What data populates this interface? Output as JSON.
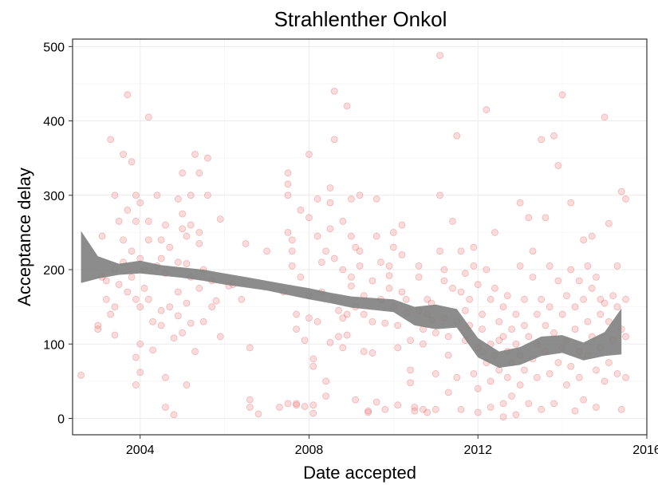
{
  "chart_data": {
    "type": "scatter",
    "title": "Strahlenther Onkol",
    "xlabel": "Date accepted",
    "ylabel": "Acceptance delay",
    "xlim": [
      2002.4,
      2016.0
    ],
    "ylim": [
      -22,
      510
    ],
    "x_ticks": [
      2004,
      2008,
      2012,
      2016
    ],
    "x_tick_labels": [
      "2004",
      "2008",
      "2012",
      "2016"
    ],
    "y_ticks": [
      0,
      100,
      200,
      300,
      400,
      500
    ],
    "y_tick_labels": [
      "0",
      "100",
      "200",
      "300",
      "400",
      "500"
    ],
    "grid": true,
    "point_color": "#f08080",
    "point_stroke": "#e34a4a",
    "smooth_color": "#808080",
    "smooth_band": {
      "x": [
        2002.6,
        2003.0,
        2003.5,
        2004.0,
        2004.5,
        2005.0,
        2005.5,
        2006.0,
        2006.5,
        2007.0,
        2007.5,
        2008.0,
        2008.5,
        2009.0,
        2009.5,
        2010.0,
        2010.5,
        2011.0,
        2011.5,
        2012.0,
        2012.5,
        2013.0,
        2013.5,
        2014.0,
        2014.5,
        2015.0,
        2015.4
      ],
      "lower": [
        182,
        188,
        193,
        195,
        192,
        189,
        185,
        180,
        176,
        172,
        166,
        160,
        155,
        149,
        146,
        143,
        125,
        120,
        122,
        82,
        68,
        72,
        84,
        88,
        78,
        84,
        86
      ],
      "upper": [
        252,
        218,
        208,
        212,
        206,
        203,
        200,
        195,
        190,
        185,
        180,
        175,
        169,
        164,
        162,
        160,
        150,
        153,
        147,
        108,
        90,
        96,
        110,
        112,
        102,
        116,
        148
      ]
    },
    "points": [
      [
        2002.6,
        58
      ],
      [
        2003.0,
        125
      ],
      [
        2003.0,
        120
      ],
      [
        2003.1,
        245
      ],
      [
        2003.1,
        190
      ],
      [
        2003.2,
        185
      ],
      [
        2003.2,
        160
      ],
      [
        2003.3,
        375
      ],
      [
        2003.3,
        140
      ],
      [
        2003.4,
        200
      ],
      [
        2003.4,
        300
      ],
      [
        2003.4,
        150
      ],
      [
        2003.4,
        112
      ],
      [
        2003.5,
        180
      ],
      [
        2003.5,
        265
      ],
      [
        2003.6,
        355
      ],
      [
        2003.6,
        240
      ],
      [
        2003.6,
        210
      ],
      [
        2003.7,
        435
      ],
      [
        2003.7,
        280
      ],
      [
        2003.7,
        170
      ],
      [
        2003.8,
        345
      ],
      [
        2003.8,
        225
      ],
      [
        2003.8,
        190
      ],
      [
        2003.9,
        300
      ],
      [
        2003.9,
        265
      ],
      [
        2003.9,
        160
      ],
      [
        2003.9,
        82
      ],
      [
        2003.9,
        45
      ],
      [
        2004.0,
        62
      ],
      [
        2004.0,
        290
      ],
      [
        2004.0,
        215
      ],
      [
        2004.0,
        150
      ],
      [
        2004.0,
        100
      ],
      [
        2004.1,
        200
      ],
      [
        2004.1,
        175
      ],
      [
        2004.2,
        405
      ],
      [
        2004.2,
        265
      ],
      [
        2004.2,
        240
      ],
      [
        2004.2,
        160
      ],
      [
        2004.3,
        130
      ],
      [
        2004.3,
        92
      ],
      [
        2004.4,
        300
      ],
      [
        2004.4,
        205
      ],
      [
        2004.5,
        240
      ],
      [
        2004.5,
        215
      ],
      [
        2004.5,
        145
      ],
      [
        2004.5,
        125
      ],
      [
        2004.6,
        260
      ],
      [
        2004.6,
        195
      ],
      [
        2004.6,
        15
      ],
      [
        2004.6,
        55
      ],
      [
        2004.7,
        230
      ],
      [
        2004.7,
        150
      ],
      [
        2004.8,
        108
      ],
      [
        2004.8,
        5
      ],
      [
        2004.9,
        295
      ],
      [
        2004.9,
        210
      ],
      [
        2004.9,
        170
      ],
      [
        2004.9,
        138
      ],
      [
        2005.0,
        330
      ],
      [
        2005.0,
        275
      ],
      [
        2005.0,
        255
      ],
      [
        2005.0,
        115
      ],
      [
        2005.1,
        245
      ],
      [
        2005.1,
        208
      ],
      [
        2005.1,
        155
      ],
      [
        2005.1,
        45
      ],
      [
        2005.2,
        300
      ],
      [
        2005.2,
        260
      ],
      [
        2005.2,
        190
      ],
      [
        2005.2,
        128
      ],
      [
        2005.3,
        90
      ],
      [
        2005.3,
        355
      ],
      [
        2005.4,
        330
      ],
      [
        2005.4,
        250
      ],
      [
        2005.4,
        235
      ],
      [
        2005.4,
        175
      ],
      [
        2005.5,
        200
      ],
      [
        2005.5,
        130
      ],
      [
        2005.6,
        300
      ],
      [
        2005.6,
        350
      ],
      [
        2005.7,
        185
      ],
      [
        2005.7,
        150
      ],
      [
        2005.8,
        158
      ],
      [
        2005.9,
        110
      ],
      [
        2005.9,
        268
      ],
      [
        2006.1,
        178
      ],
      [
        2006.2,
        180
      ],
      [
        2006.4,
        160
      ],
      [
        2006.5,
        235
      ],
      [
        2006.6,
        25
      ],
      [
        2006.6,
        95
      ],
      [
        2006.6,
        15
      ],
      [
        2006.8,
        6
      ],
      [
        2007.0,
        225
      ],
      [
        2007.3,
        15
      ],
      [
        2007.4,
        170
      ],
      [
        2007.5,
        20
      ],
      [
        2007.5,
        330
      ],
      [
        2007.5,
        315
      ],
      [
        2007.5,
        300
      ],
      [
        2007.5,
        250
      ],
      [
        2007.6,
        240
      ],
      [
        2007.6,
        225
      ],
      [
        2007.6,
        205
      ],
      [
        2007.7,
        140
      ],
      [
        2007.7,
        120
      ],
      [
        2007.7,
        20
      ],
      [
        2007.7,
        18
      ],
      [
        2007.8,
        280
      ],
      [
        2007.8,
        190
      ],
      [
        2007.9,
        105
      ],
      [
        2007.9,
        16
      ],
      [
        2008.0,
        355
      ],
      [
        2008.0,
        270
      ],
      [
        2008.0,
        165
      ],
      [
        2008.0,
        135
      ],
      [
        2008.1,
        80
      ],
      [
        2008.1,
        70
      ],
      [
        2008.1,
        7
      ],
      [
        2008.1,
        18
      ],
      [
        2008.2,
        295
      ],
      [
        2008.2,
        245
      ],
      [
        2008.2,
        130
      ],
      [
        2008.3,
        210
      ],
      [
        2008.3,
        170
      ],
      [
        2008.4,
        50
      ],
      [
        2008.4,
        30
      ],
      [
        2008.4,
        225
      ],
      [
        2008.5,
        310
      ],
      [
        2008.5,
        290
      ],
      [
        2008.5,
        255
      ],
      [
        2008.5,
        102
      ],
      [
        2008.6,
        440
      ],
      [
        2008.6,
        375
      ],
      [
        2008.6,
        215
      ],
      [
        2008.6,
        160
      ],
      [
        2008.7,
        145
      ],
      [
        2008.7,
        110
      ],
      [
        2008.8,
        265
      ],
      [
        2008.8,
        200
      ],
      [
        2008.8,
        135
      ],
      [
        2008.8,
        95
      ],
      [
        2008.9,
        420
      ],
      [
        2008.9,
        140
      ],
      [
        2008.9,
        112
      ],
      [
        2009.0,
        295
      ],
      [
        2009.0,
        245
      ],
      [
        2009.0,
        190
      ],
      [
        2009.0,
        178
      ],
      [
        2009.1,
        230
      ],
      [
        2009.1,
        150
      ],
      [
        2009.1,
        25
      ],
      [
        2009.2,
        300
      ],
      [
        2009.2,
        225
      ],
      [
        2009.2,
        205
      ],
      [
        2009.3,
        165
      ],
      [
        2009.3,
        140
      ],
      [
        2009.3,
        90
      ],
      [
        2009.4,
        10
      ],
      [
        2009.4,
        8
      ],
      [
        2009.5,
        185
      ],
      [
        2009.5,
        130
      ],
      [
        2009.5,
        88
      ],
      [
        2009.6,
        295
      ],
      [
        2009.6,
        245
      ],
      [
        2009.6,
        22
      ],
      [
        2009.7,
        210
      ],
      [
        2009.7,
        160
      ],
      [
        2009.8,
        128
      ],
      [
        2009.8,
        12
      ],
      [
        2009.9,
        205
      ],
      [
        2009.9,
        192
      ],
      [
        2009.9,
        175
      ],
      [
        2010.0,
        250
      ],
      [
        2010.0,
        230
      ],
      [
        2010.0,
        150
      ],
      [
        2010.1,
        125
      ],
      [
        2010.1,
        95
      ],
      [
        2010.1,
        18
      ],
      [
        2010.2,
        260
      ],
      [
        2010.2,
        220
      ],
      [
        2010.2,
        170
      ],
      [
        2010.3,
        160
      ],
      [
        2010.3,
        142
      ],
      [
        2010.4,
        105
      ],
      [
        2010.4,
        65
      ],
      [
        2010.4,
        48
      ],
      [
        2010.5,
        15
      ],
      [
        2010.5,
        10
      ],
      [
        2010.6,
        205
      ],
      [
        2010.6,
        190
      ],
      [
        2010.6,
        145
      ],
      [
        2010.7,
        120
      ],
      [
        2010.7,
        100
      ],
      [
        2010.7,
        12
      ],
      [
        2010.8,
        160
      ],
      [
        2010.8,
        140
      ],
      [
        2010.8,
        8
      ],
      [
        2010.9,
        155
      ],
      [
        2010.9,
        132
      ],
      [
        2011.0,
        115
      ],
      [
        2011.0,
        60
      ],
      [
        2011.0,
        12
      ],
      [
        2011.1,
        488
      ],
      [
        2011.1,
        300
      ],
      [
        2011.1,
        225
      ],
      [
        2011.2,
        200
      ],
      [
        2011.2,
        185
      ],
      [
        2011.2,
        135
      ],
      [
        2011.3,
        110
      ],
      [
        2011.3,
        85
      ],
      [
        2011.3,
        35
      ],
      [
        2011.4,
        265
      ],
      [
        2011.4,
        175
      ],
      [
        2011.5,
        380
      ],
      [
        2011.5,
        130
      ],
      [
        2011.5,
        55
      ],
      [
        2011.6,
        225
      ],
      [
        2011.6,
        170
      ],
      [
        2011.6,
        12
      ],
      [
        2011.7,
        195
      ],
      [
        2011.7,
        145
      ],
      [
        2011.7,
        105
      ],
      [
        2011.8,
        160
      ],
      [
        2011.8,
        125
      ],
      [
        2011.9,
        230
      ],
      [
        2011.9,
        205
      ],
      [
        2011.9,
        60
      ],
      [
        2012.0,
        180
      ],
      [
        2012.0,
        95
      ],
      [
        2012.0,
        40
      ],
      [
        2012.0,
        8
      ],
      [
        2012.1,
        140
      ],
      [
        2012.1,
        120
      ],
      [
        2012.1,
        90
      ],
      [
        2012.2,
        415
      ],
      [
        2012.2,
        200
      ],
      [
        2012.2,
        75
      ],
      [
        2012.3,
        160
      ],
      [
        2012.3,
        100
      ],
      [
        2012.3,
        50
      ],
      [
        2012.3,
        15
      ],
      [
        2012.4,
        250
      ],
      [
        2012.4,
        175
      ],
      [
        2012.4,
        85
      ],
      [
        2012.5,
        130
      ],
      [
        2012.5,
        105
      ],
      [
        2012.5,
        65
      ],
      [
        2012.6,
        150
      ],
      [
        2012.6,
        110
      ],
      [
        2012.6,
        20
      ],
      [
        2012.6,
        2
      ],
      [
        2012.7,
        165
      ],
      [
        2012.7,
        90
      ],
      [
        2012.7,
        55
      ],
      [
        2012.8,
        120
      ],
      [
        2012.8,
        75
      ],
      [
        2012.8,
        30
      ],
      [
        2012.9,
        140
      ],
      [
        2012.9,
        100
      ],
      [
        2012.9,
        5
      ],
      [
        2013.0,
        290
      ],
      [
        2013.0,
        205
      ],
      [
        2013.0,
        85
      ],
      [
        2013.0,
        45
      ],
      [
        2013.1,
        160
      ],
      [
        2013.1,
        125
      ],
      [
        2013.1,
        65
      ],
      [
        2013.2,
        270
      ],
      [
        2013.2,
        110
      ],
      [
        2013.2,
        20
      ],
      [
        2013.3,
        225
      ],
      [
        2013.3,
        190
      ],
      [
        2013.3,
        80
      ],
      [
        2013.4,
        140
      ],
      [
        2013.4,
        100
      ],
      [
        2013.4,
        55
      ],
      [
        2013.5,
        375
      ],
      [
        2013.5,
        160
      ],
      [
        2013.5,
        12
      ],
      [
        2013.6,
        270
      ],
      [
        2013.6,
        125
      ],
      [
        2013.6,
        90
      ],
      [
        2013.7,
        205
      ],
      [
        2013.7,
        150
      ],
      [
        2013.7,
        60
      ],
      [
        2013.8,
        380
      ],
      [
        2013.8,
        115
      ],
      [
        2013.8,
        20
      ],
      [
        2013.9,
        340
      ],
      [
        2013.9,
        185
      ],
      [
        2013.9,
        75
      ],
      [
        2014.0,
        435
      ],
      [
        2014.0,
        140
      ],
      [
        2014.0,
        95
      ],
      [
        2014.1,
        165
      ],
      [
        2014.1,
        105
      ],
      [
        2014.1,
        45
      ],
      [
        2014.2,
        290
      ],
      [
        2014.2,
        200
      ],
      [
        2014.2,
        70
      ],
      [
        2014.3,
        150
      ],
      [
        2014.3,
        120
      ],
      [
        2014.3,
        10
      ],
      [
        2014.4,
        185
      ],
      [
        2014.4,
        90
      ],
      [
        2014.4,
        55
      ],
      [
        2014.5,
        240
      ],
      [
        2014.5,
        160
      ],
      [
        2014.5,
        25
      ],
      [
        2014.6,
        205
      ],
      [
        2014.6,
        130
      ],
      [
        2014.6,
        85
      ],
      [
        2014.7,
        245
      ],
      [
        2014.7,
        175
      ],
      [
        2014.7,
        110
      ],
      [
        2014.8,
        190
      ],
      [
        2014.8,
        65
      ],
      [
        2014.8,
        15
      ],
      [
        2014.9,
        160
      ],
      [
        2014.9,
        140
      ],
      [
        2014.9,
        95
      ],
      [
        2015.0,
        405
      ],
      [
        2015.0,
        155
      ],
      [
        2015.0,
        50
      ],
      [
        2015.1,
        262
      ],
      [
        2015.1,
        130
      ],
      [
        2015.1,
        75
      ],
      [
        2015.2,
        165
      ],
      [
        2015.2,
        105
      ],
      [
        2015.3,
        205
      ],
      [
        2015.3,
        150
      ],
      [
        2015.3,
        60
      ],
      [
        2015.4,
        305
      ],
      [
        2015.4,
        120
      ],
      [
        2015.4,
        12
      ],
      [
        2015.5,
        295
      ],
      [
        2015.5,
        110
      ],
      [
        2015.5,
        55
      ],
      [
        2015.5,
        160
      ]
    ]
  }
}
